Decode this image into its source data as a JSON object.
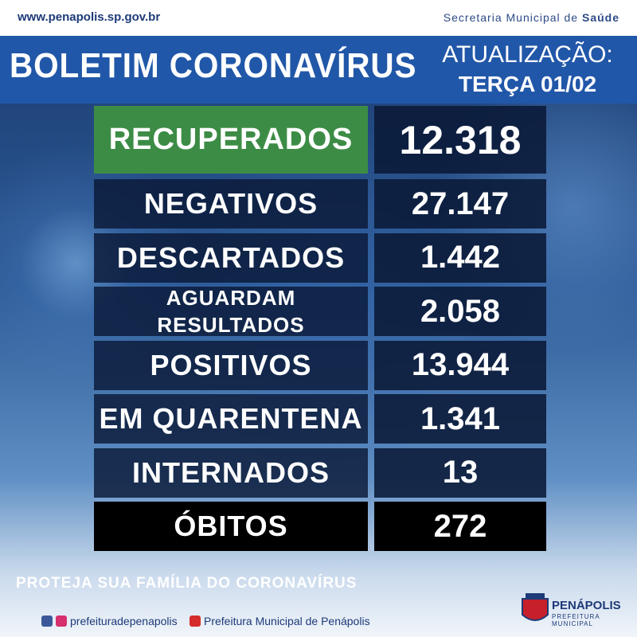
{
  "header": {
    "url": "www.penapolis.sp.gov.br",
    "department": "Secretaria Municipal de",
    "department_bold": "Saúde"
  },
  "banner": {
    "title": "BOLETIM CORONAVÍRUS",
    "update_label": "ATUALIZAÇÃO:",
    "date": "TERÇA 01/02"
  },
  "table": {
    "rows": [
      {
        "label": "RECUPERADOS",
        "value": "12.318"
      },
      {
        "label": "NEGATIVOS",
        "value": "27.147"
      },
      {
        "label": "DESCARTADOS",
        "value": "1.442"
      },
      {
        "label": "AGUARDAM RESULTADOS",
        "value": "2.058"
      },
      {
        "label": "POSITIVOS",
        "value": "13.944"
      },
      {
        "label": "EM QUARENTENA",
        "value": "1.341"
      },
      {
        "label": "INTERNADOS",
        "value": "13"
      },
      {
        "label": "ÓBITOS",
        "value": "272"
      }
    ]
  },
  "footer": {
    "slogan": "PROTEJA SUA FAMÍLIA DO CORONAVÍRUS",
    "social_handle": "prefeituradepenapolis",
    "youtube": "Prefeitura Municipal de Penápolis",
    "logo_name": "PENÁPOLIS",
    "logo_sub": "PREFEITURA MUNICIPAL"
  }
}
